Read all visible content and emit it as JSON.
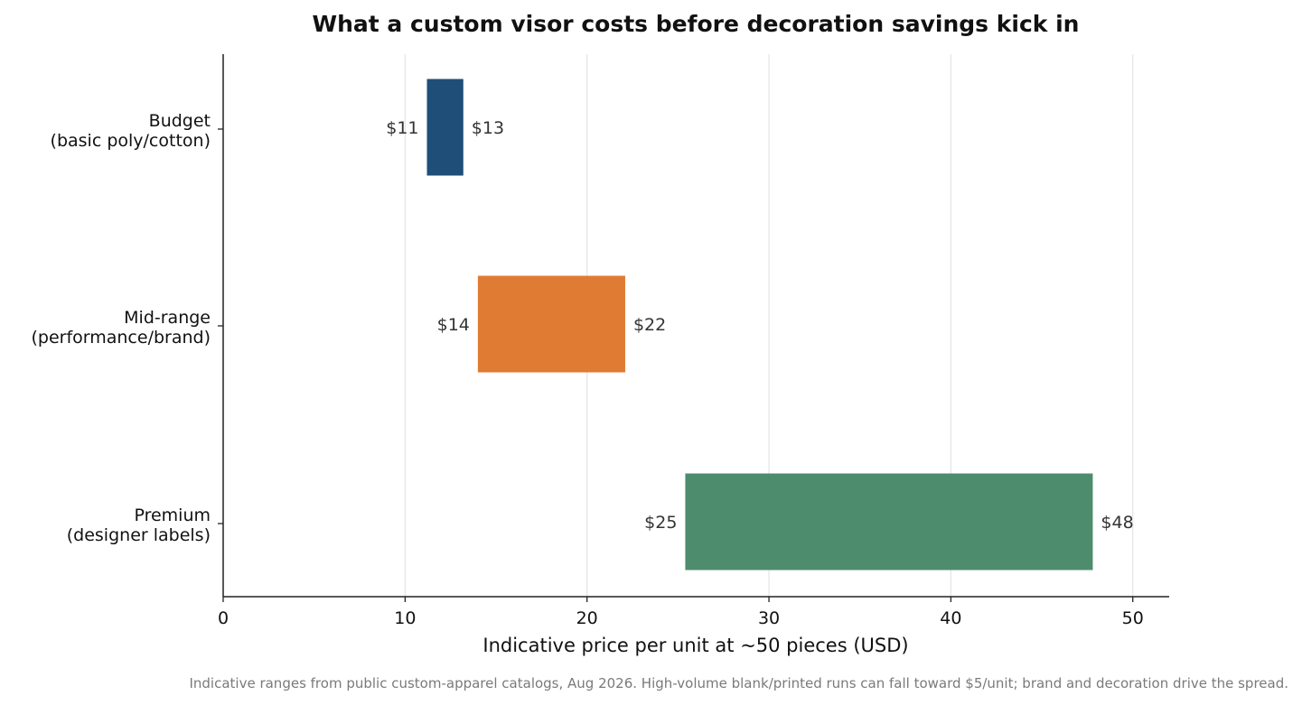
{
  "chart_data": {
    "type": "bar",
    "orientation": "horizontal-range",
    "title": "What a custom visor costs before decoration savings kick in",
    "xlabel": "Indicative price per unit at ~50 pieces (USD)",
    "ylabel": "",
    "xlim": [
      0,
      52
    ],
    "xticks": [
      0,
      10,
      20,
      30,
      40,
      50
    ],
    "grid": "vertical",
    "categories": [
      [
        "Budget",
        "(basic poly/cotton)"
      ],
      [
        "Mid-range",
        "(performance/brand)"
      ],
      [
        "Premium",
        "(designer labels)"
      ]
    ],
    "ranges": [
      {
        "low": 11.2,
        "high": 13.2,
        "low_label": "$11",
        "high_label": "$13",
        "color": "#1f4e79"
      },
      {
        "low": 14.0,
        "high": 22.1,
        "low_label": "$14",
        "high_label": "$22",
        "color": "#e07b33"
      },
      {
        "low": 25.4,
        "high": 47.8,
        "low_label": "$25",
        "high_label": "$48",
        "color": "#4e8c6e"
      }
    ],
    "footnote": "Indicative ranges from public custom-apparel catalogs, Aug 2026. High-volume blank/printed runs can fall toward $5/unit; brand and decoration drive the spread."
  }
}
